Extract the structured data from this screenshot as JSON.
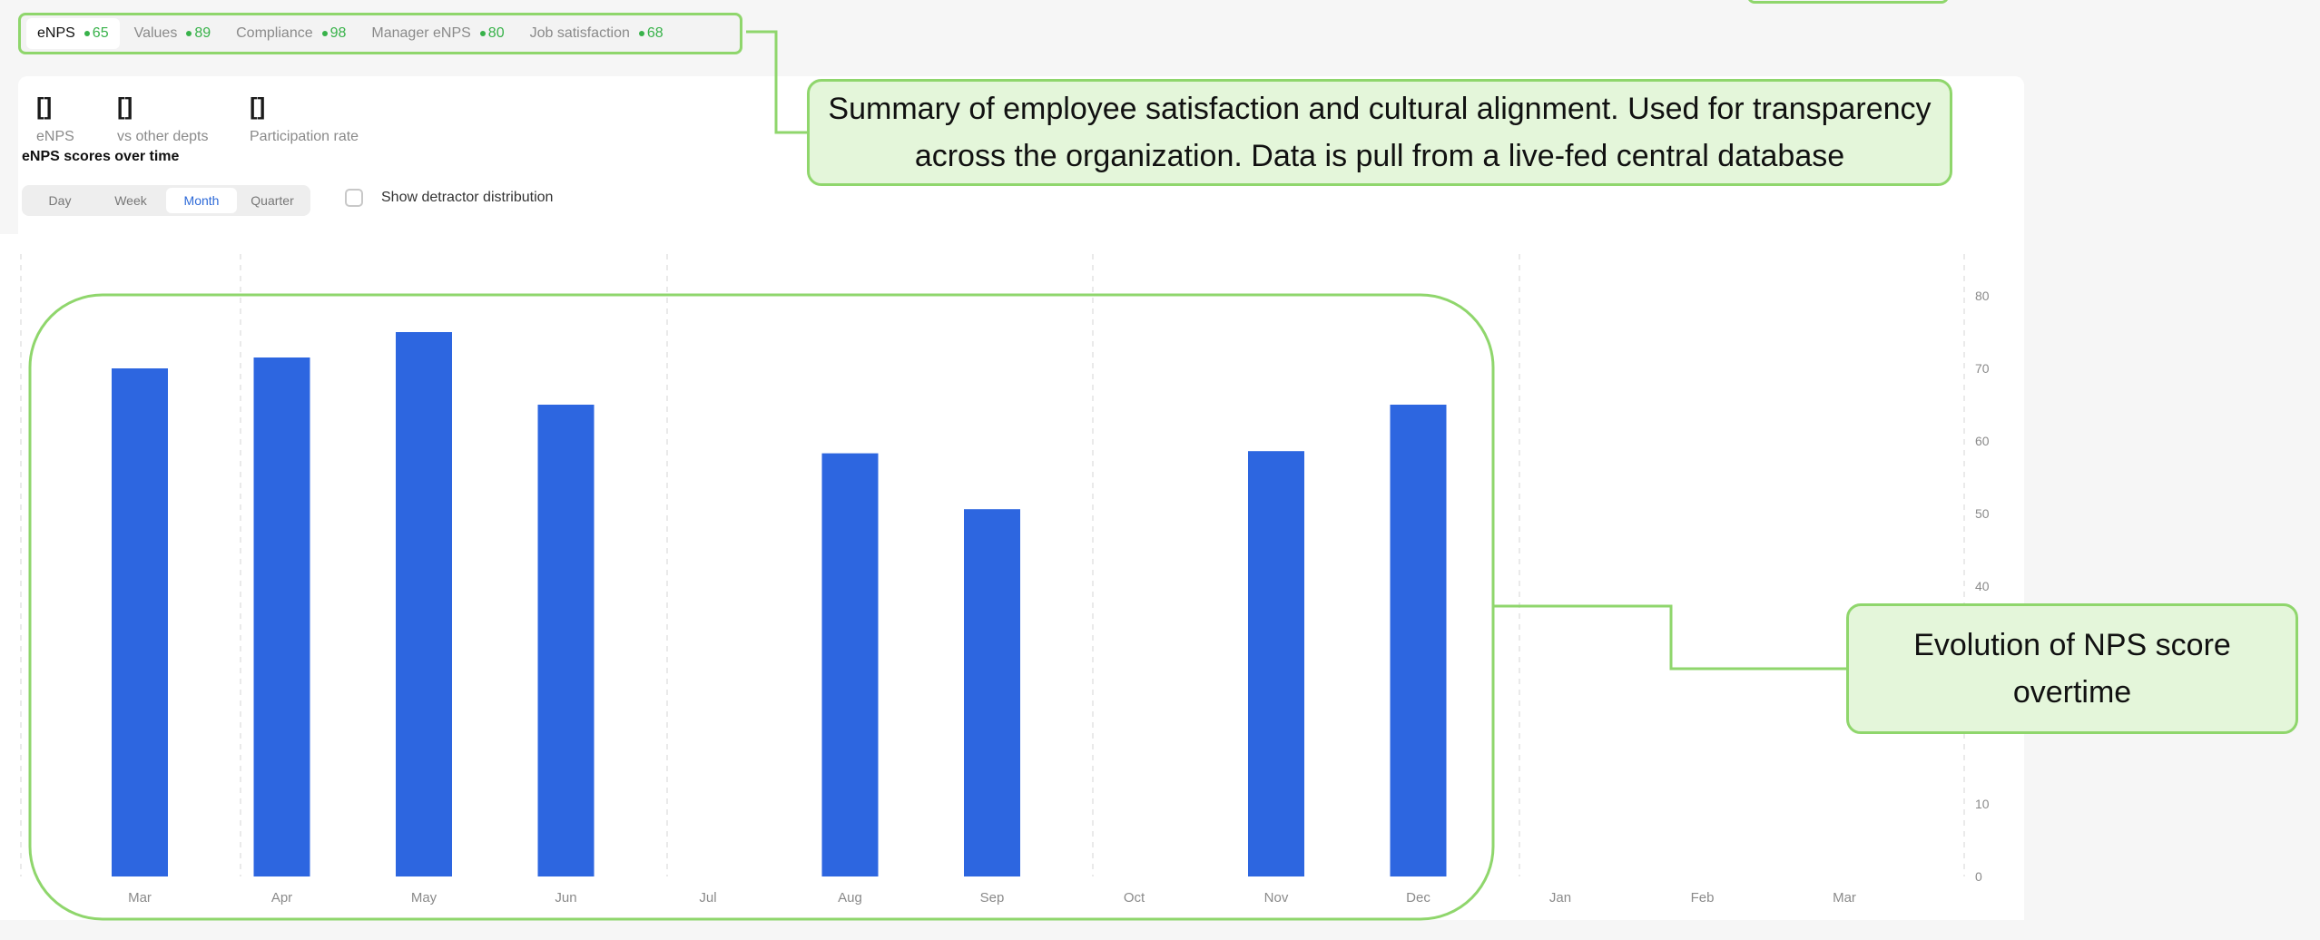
{
  "metric_tabs": [
    {
      "label": "eNPS",
      "score": "65"
    },
    {
      "label": "Values",
      "score": "89"
    },
    {
      "label": "Compliance",
      "score": "98"
    },
    {
      "label": "Manager eNPS",
      "score": "80"
    },
    {
      "label": "Job satisfaction",
      "score": "68"
    }
  ],
  "kpis": [
    {
      "value": "[]",
      "label": "eNPS"
    },
    {
      "value": "[]",
      "label": "vs other depts"
    },
    {
      "value": "[]",
      "label": "Participation rate"
    }
  ],
  "section_title": "eNPS scores over time",
  "period_options": [
    "Day",
    "Week",
    "Month",
    "Quarter"
  ],
  "selected_period": "Month",
  "detractor_toggle": {
    "label": "Show detractor distribution",
    "checked": false
  },
  "chart_data": {
    "type": "bar",
    "title": "",
    "xlabel": "",
    "ylabel": "",
    "categories": [
      "Mar",
      "Apr",
      "May",
      "Jun",
      "Jul",
      "Aug",
      "Sep",
      "Oct",
      "Nov",
      "Dec",
      "Jan",
      "Feb",
      "Mar"
    ],
    "values": [
      70,
      71.5,
      75,
      65,
      null,
      58.3,
      50.6,
      null,
      58.6,
      65,
      null,
      null,
      null
    ],
    "ylim": [
      0,
      80
    ],
    "yticks": [
      0,
      10,
      40,
      50,
      60,
      70,
      80
    ],
    "y_axis_position": "right",
    "bar_color": "#2d66e0",
    "grid": "vertical dashed"
  },
  "annotations": {
    "summary": "Summary of employee satisfaction and cultural alignment. Used for transparency across the organization. Data is pull from a live-fed central database",
    "chart": "Evolution of NPS score overtime"
  },
  "colors": {
    "accent": "#2e6ad8",
    "callout_border": "#8fd66c",
    "callout_fill": "#e4f6da",
    "score_green": "#38b24a"
  }
}
